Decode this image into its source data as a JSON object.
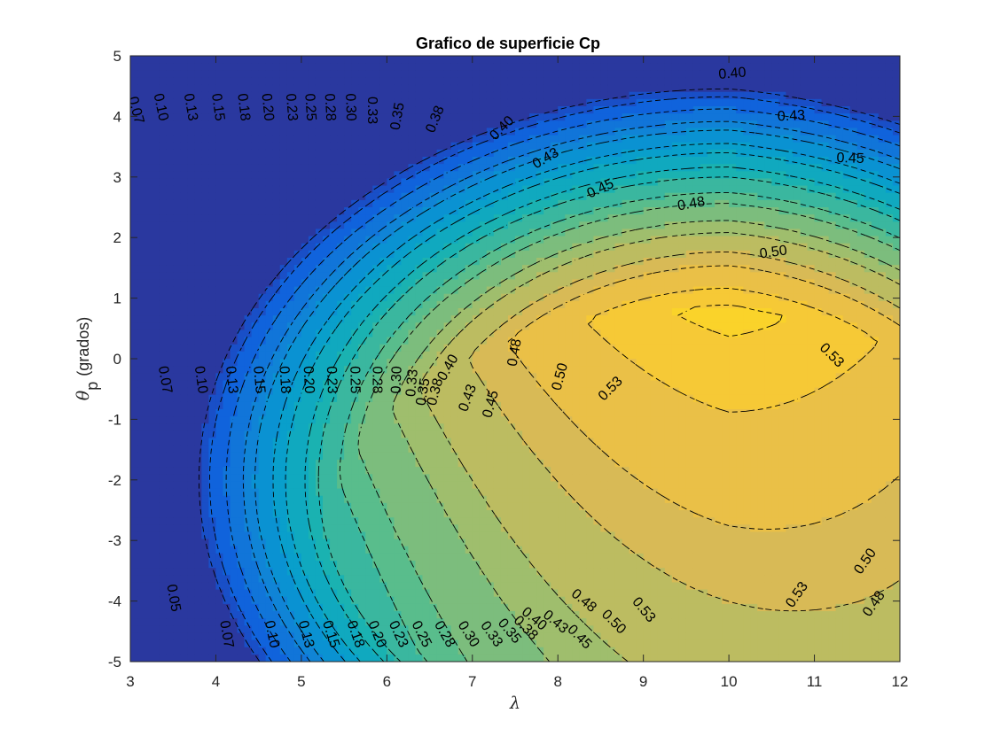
{
  "chart_data": {
    "type": "contour",
    "title": "Grafico de superficie Cp",
    "xlabel": "λ",
    "ylabel": {
      "symbol": "θ",
      "subscript": "p",
      "text": "(grados)"
    },
    "xlim": [
      3,
      12
    ],
    "ylim": [
      -5,
      5
    ],
    "x_ticks": [
      3,
      4,
      5,
      6,
      7,
      8,
      9,
      10,
      11,
      12
    ],
    "y_ticks": [
      -5,
      -4,
      -3,
      -2,
      -1,
      0,
      1,
      2,
      3,
      4,
      5
    ],
    "filled": true,
    "contour_line_style": "dashed",
    "grid": false,
    "colormap": "parula",
    "color_range": [
      0.02,
      0.56
    ],
    "contour_levels": [
      0.05,
      0.07,
      0.1,
      0.13,
      0.15,
      0.18,
      0.2,
      0.23,
      0.25,
      0.28,
      0.3,
      0.33,
      0.35,
      0.38,
      0.4,
      0.43,
      0.45,
      0.48,
      0.5,
      0.53
    ],
    "contour_labels": [
      {
        "text": "0.07",
        "x": 3.06,
        "y": 4.1,
        "angle": 75
      },
      {
        "text": "0.10",
        "x": 3.35,
        "y": 4.15,
        "angle": 78
      },
      {
        "text": "0.13",
        "x": 3.7,
        "y": 4.15,
        "angle": 80
      },
      {
        "text": "0.15",
        "x": 4.02,
        "y": 4.15,
        "angle": 82
      },
      {
        "text": "0.18",
        "x": 4.32,
        "y": 4.15,
        "angle": 83
      },
      {
        "text": "0.20",
        "x": 4.6,
        "y": 4.15,
        "angle": 84
      },
      {
        "text": "0.23",
        "x": 4.88,
        "y": 4.15,
        "angle": 85
      },
      {
        "text": "0.25",
        "x": 5.1,
        "y": 4.15,
        "angle": 86
      },
      {
        "text": "0.28",
        "x": 5.33,
        "y": 4.15,
        "angle": 87
      },
      {
        "text": "0.30",
        "x": 5.57,
        "y": 4.15,
        "angle": 88
      },
      {
        "text": "0.33",
        "x": 5.82,
        "y": 4.1,
        "angle": 90
      },
      {
        "text": "0.35",
        "x": 6.13,
        "y": 4.0,
        "angle": -80
      },
      {
        "text": "0.38",
        "x": 6.57,
        "y": 3.95,
        "angle": -68
      },
      {
        "text": "0.40",
        "x": 7.35,
        "y": 3.8,
        "angle": -45
      },
      {
        "text": "0.43",
        "x": 7.86,
        "y": 3.3,
        "angle": -30
      },
      {
        "text": "0.45",
        "x": 8.5,
        "y": 2.8,
        "angle": -25
      },
      {
        "text": "0.48",
        "x": 9.56,
        "y": 2.55,
        "angle": -10
      },
      {
        "text": "0.50",
        "x": 10.52,
        "y": 1.75,
        "angle": -8
      },
      {
        "text": "0.40",
        "x": 10.04,
        "y": 4.7,
        "angle": -5
      },
      {
        "text": "0.43",
        "x": 10.73,
        "y": 4.0,
        "angle": -3
      },
      {
        "text": "0.45",
        "x": 11.42,
        "y": 3.3,
        "angle": 2
      },
      {
        "text": "0.05",
        "x": 3.5,
        "y": -3.95,
        "angle": 80
      },
      {
        "text": "0.07",
        "x": 3.4,
        "y": -0.35,
        "angle": 80
      },
      {
        "text": "0.10",
        "x": 3.82,
        "y": -0.35,
        "angle": 82
      },
      {
        "text": "0.13",
        "x": 4.18,
        "y": -0.35,
        "angle": 84
      },
      {
        "text": "0.15",
        "x": 4.5,
        "y": -0.35,
        "angle": 85
      },
      {
        "text": "0.18",
        "x": 4.8,
        "y": -0.35,
        "angle": 86
      },
      {
        "text": "0.20",
        "x": 5.08,
        "y": -0.35,
        "angle": 87
      },
      {
        "text": "0.23",
        "x": 5.35,
        "y": -0.35,
        "angle": 88
      },
      {
        "text": "0.25",
        "x": 5.62,
        "y": -0.35,
        "angle": 89
      },
      {
        "text": "0.28",
        "x": 5.88,
        "y": -0.35,
        "angle": 90
      },
      {
        "text": "0.30",
        "x": 6.12,
        "y": -0.35,
        "angle": -88
      },
      {
        "text": "0.33",
        "x": 6.3,
        "y": -0.4,
        "angle": -85
      },
      {
        "text": "0.35",
        "x": 6.43,
        "y": -0.55,
        "angle": -80
      },
      {
        "text": "0.38",
        "x": 6.57,
        "y": -0.55,
        "angle": -75
      },
      {
        "text": "0.40",
        "x": 6.72,
        "y": -0.15,
        "angle": -60
      },
      {
        "text": "0.43",
        "x": 6.95,
        "y": -0.65,
        "angle": -70
      },
      {
        "text": "0.45",
        "x": 7.22,
        "y": -0.75,
        "angle": -75
      },
      {
        "text": "0.48",
        "x": 7.5,
        "y": 0.1,
        "angle": -80
      },
      {
        "text": "0.50",
        "x": 8.03,
        "y": -0.3,
        "angle": -75
      },
      {
        "text": "0.53",
        "x": 8.62,
        "y": -0.5,
        "angle": -45
      },
      {
        "text": "0.53",
        "x": 11.2,
        "y": 0.05,
        "angle": 45
      },
      {
        "text": "0.07",
        "x": 4.12,
        "y": -4.55,
        "angle": 80
      },
      {
        "text": "0.10",
        "x": 4.65,
        "y": -4.55,
        "angle": 78
      },
      {
        "text": "0.13",
        "x": 5.05,
        "y": -4.55,
        "angle": 75
      },
      {
        "text": "0.15",
        "x": 5.34,
        "y": -4.55,
        "angle": 72
      },
      {
        "text": "0.18",
        "x": 5.63,
        "y": -4.55,
        "angle": 70
      },
      {
        "text": "0.20",
        "x": 5.88,
        "y": -4.55,
        "angle": 68
      },
      {
        "text": "0.23",
        "x": 6.13,
        "y": -4.55,
        "angle": 65
      },
      {
        "text": "0.25",
        "x": 6.4,
        "y": -4.55,
        "angle": 63
      },
      {
        "text": "0.28",
        "x": 6.67,
        "y": -4.55,
        "angle": 60
      },
      {
        "text": "0.30",
        "x": 6.95,
        "y": -4.55,
        "angle": 58
      },
      {
        "text": "0.33",
        "x": 7.22,
        "y": -4.55,
        "angle": 55
      },
      {
        "text": "0.35",
        "x": 7.43,
        "y": -4.5,
        "angle": 50
      },
      {
        "text": "0.38",
        "x": 7.62,
        "y": -4.45,
        "angle": 45
      },
      {
        "text": "0.40",
        "x": 7.72,
        "y": -4.3,
        "angle": 40
      },
      {
        "text": "0.43",
        "x": 7.97,
        "y": -4.35,
        "angle": 40
      },
      {
        "text": "0.45",
        "x": 8.25,
        "y": -4.6,
        "angle": 45
      },
      {
        "text": "0.48",
        "x": 8.3,
        "y": -4.0,
        "angle": 40
      },
      {
        "text": "0.50",
        "x": 8.65,
        "y": -4.35,
        "angle": 45
      },
      {
        "text": "0.53",
        "x": 9.0,
        "y": -4.15,
        "angle": 50
      },
      {
        "text": "0.53",
        "x": 10.8,
        "y": -3.9,
        "angle": -55
      },
      {
        "text": "0.50",
        "x": 11.6,
        "y": -3.35,
        "angle": -55
      },
      {
        "text": "0.48",
        "x": 11.7,
        "y": -4.05,
        "angle": -55
      }
    ]
  }
}
